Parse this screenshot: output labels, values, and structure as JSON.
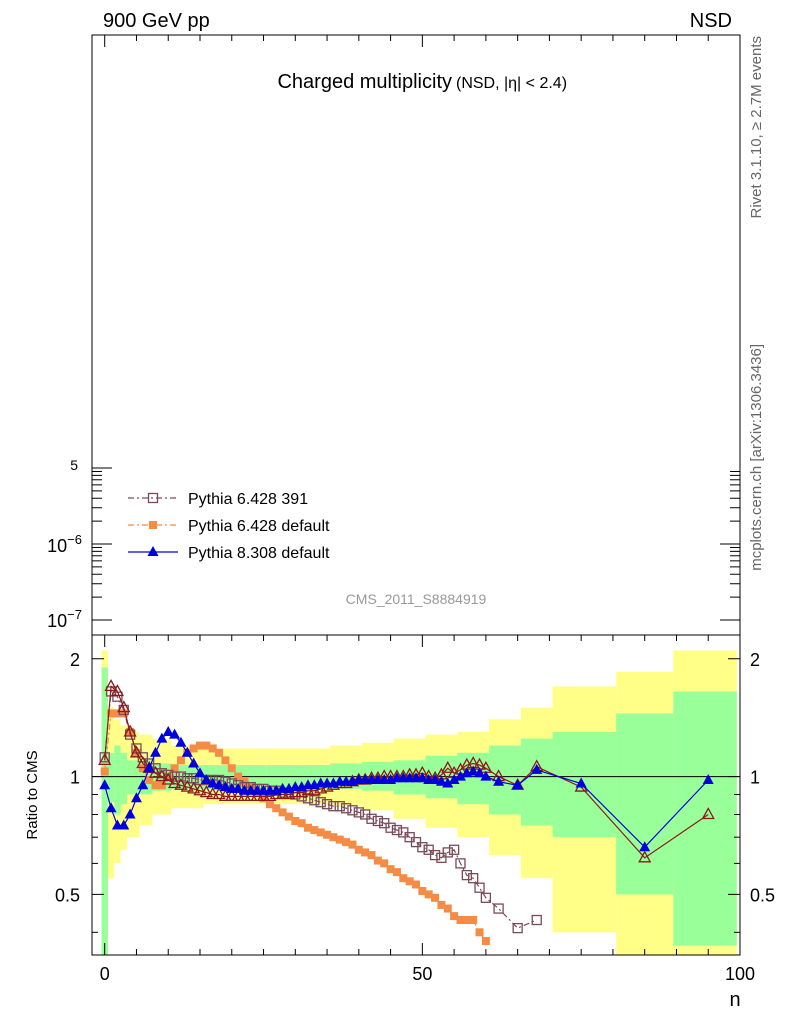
{
  "header": {
    "left": "900 GeV pp",
    "right": "NSD",
    "side_top": "Rivet 3.1.10, ≥ 2.7M events",
    "side_bottom": "mcplots.cern.ch [arXiv:1306.3436]"
  },
  "main_panel": {
    "title": "Charged multiplicity",
    "title_sub": "(NSD, |η| < 2.4)",
    "analysis_id": "CMS_2011_S8884919",
    "y_tick_labels": [
      {
        "label": "10",
        "exp": "−7",
        "value": 1e-07
      },
      {
        "label": "10",
        "exp": "−6",
        "value": 1e-06
      },
      {
        "label": "5",
        "exp": "",
        "value": 5e-06
      }
    ],
    "legend": [
      {
        "label": "Pythia 6.428 391",
        "color": "#7b4a58",
        "marker": "open-square",
        "dash": "6,3,2,3"
      },
      {
        "label": "Pythia 6.428 default",
        "color": "#f58c46",
        "marker": "filled-square",
        "dash": "6,3,2,3"
      },
      {
        "label": "Pythia 8.308 default",
        "color": "#0000dd",
        "marker": "filled-triangle",
        "dash": ""
      }
    ]
  },
  "ratio_panel": {
    "ylabel": "Ratio to CMS",
    "xlabel": "n",
    "x_tick_labels": [
      "0",
      "50",
      "100"
    ],
    "y_tick_labels": [
      "0.5",
      "1",
      "2"
    ]
  },
  "chart_data": {
    "type": "line",
    "xlabel": "n",
    "ylabel": "Ratio to CMS",
    "xlim": [
      -2,
      100
    ],
    "ylim": [
      0.35,
      2.3
    ],
    "yscale": "log",
    "uncertainty_bands": {
      "color_inner": "#99ff99",
      "color_outer": "#ffff88",
      "x_edges": [
        -0.5,
        0.5,
        1.5,
        2.5,
        3.5,
        5.5,
        7.5,
        10.5,
        15.5,
        20.5,
        25.5,
        30.5,
        35.5,
        40.5,
        45.5,
        50.5,
        55.5,
        60.5,
        65.5,
        70.5,
        80.5,
        89.5,
        99.5
      ],
      "inner_lo": [
        0.3,
        0.86,
        0.8,
        0.85,
        0.9,
        0.9,
        0.92,
        0.93,
        0.93,
        0.93,
        0.93,
        0.93,
        0.93,
        0.92,
        0.9,
        0.88,
        0.85,
        0.8,
        0.75,
        0.7,
        0.5,
        0.37
      ],
      "inner_hi": [
        1.9,
        1.15,
        1.2,
        1.15,
        1.1,
        1.1,
        1.08,
        1.07,
        1.07,
        1.07,
        1.07,
        1.07,
        1.08,
        1.09,
        1.1,
        1.13,
        1.15,
        1.2,
        1.25,
        1.3,
        1.45,
        1.65
      ],
      "outer_lo": [
        0.3,
        0.55,
        0.6,
        0.65,
        0.7,
        0.75,
        0.8,
        0.83,
        0.85,
        0.85,
        0.85,
        0.85,
        0.84,
        0.82,
        0.78,
        0.74,
        0.7,
        0.63,
        0.55,
        0.4,
        0.3,
        0.3
      ],
      "outer_hi": [
        2.1,
        1.5,
        1.4,
        1.35,
        1.3,
        1.28,
        1.25,
        1.2,
        1.18,
        1.18,
        1.18,
        1.18,
        1.2,
        1.22,
        1.25,
        1.28,
        1.3,
        1.4,
        1.5,
        1.7,
        1.85,
        2.1
      ]
    },
    "series": [
      {
        "name": "Pythia 6.428 391",
        "color": "#7b4a58",
        "marker": "open-square",
        "x": [
          0,
          1,
          2,
          3,
          4,
          5,
          6,
          7,
          8,
          9,
          10,
          11,
          12,
          13,
          14,
          15,
          16,
          17,
          18,
          19,
          20,
          21,
          22,
          23,
          24,
          25,
          26,
          27,
          28,
          29,
          30,
          31,
          32,
          33,
          34,
          35,
          36,
          37,
          38,
          39,
          40,
          41,
          42,
          43,
          44,
          45,
          46,
          47,
          48,
          49,
          50,
          51,
          52,
          53,
          54,
          55,
          56,
          57,
          58,
          59,
          60,
          62,
          65,
          68
        ],
        "y": [
          1.12,
          1.65,
          1.6,
          1.48,
          1.28,
          1.18,
          1.12,
          1.08,
          1.05,
          1.02,
          1.01,
          1.0,
          1.0,
          0.99,
          0.99,
          0.98,
          0.98,
          0.98,
          0.98,
          0.97,
          0.96,
          0.95,
          0.94,
          0.94,
          0.93,
          0.93,
          0.92,
          0.92,
          0.91,
          0.91,
          0.9,
          0.89,
          0.88,
          0.87,
          0.86,
          0.85,
          0.84,
          0.84,
          0.83,
          0.82,
          0.81,
          0.8,
          0.78,
          0.77,
          0.76,
          0.74,
          0.73,
          0.72,
          0.7,
          0.68,
          0.66,
          0.65,
          0.63,
          0.62,
          0.64,
          0.65,
          0.6,
          0.56,
          0.55,
          0.52,
          0.49,
          0.46,
          0.41,
          0.43
        ]
      },
      {
        "name": "Pythia 6.428 default",
        "color": "#f58c46",
        "marker": "filled-square",
        "x": [
          0,
          1,
          2,
          3,
          4,
          5,
          6,
          7,
          8,
          9,
          10,
          11,
          12,
          13,
          14,
          15,
          16,
          17,
          18,
          19,
          20,
          21,
          22,
          23,
          24,
          25,
          26,
          27,
          28,
          29,
          30,
          31,
          32,
          33,
          34,
          35,
          36,
          37,
          38,
          39,
          40,
          41,
          42,
          43,
          44,
          45,
          46,
          47,
          48,
          49,
          50,
          51,
          52,
          53,
          54,
          55,
          56,
          57,
          58,
          59,
          60
        ],
        "y": [
          1.03,
          1.45,
          1.45,
          1.45,
          1.3,
          1.15,
          1.05,
          0.98,
          0.95,
          0.95,
          1.0,
          1.05,
          1.1,
          1.15,
          1.18,
          1.2,
          1.2,
          1.18,
          1.15,
          1.1,
          1.05,
          1.0,
          0.97,
          0.94,
          0.91,
          0.88,
          0.85,
          0.83,
          0.81,
          0.79,
          0.77,
          0.76,
          0.74,
          0.73,
          0.72,
          0.71,
          0.7,
          0.69,
          0.68,
          0.67,
          0.65,
          0.64,
          0.63,
          0.61,
          0.6,
          0.58,
          0.57,
          0.55,
          0.54,
          0.53,
          0.51,
          0.5,
          0.49,
          0.47,
          0.46,
          0.44,
          0.43,
          0.43,
          0.43,
          0.4,
          0.38
        ]
      },
      {
        "name": "Pythia 8.308 default",
        "color": "#0000dd",
        "marker": "filled-triangle",
        "x": [
          0,
          1,
          2,
          3,
          4,
          5,
          6,
          7,
          8,
          9,
          10,
          11,
          12,
          13,
          14,
          15,
          16,
          17,
          18,
          19,
          20,
          21,
          22,
          23,
          24,
          25,
          26,
          27,
          28,
          29,
          30,
          31,
          32,
          33,
          34,
          35,
          36,
          37,
          38,
          39,
          40,
          41,
          42,
          43,
          44,
          45,
          46,
          47,
          48,
          49,
          50,
          51,
          52,
          53,
          54,
          55,
          56,
          57,
          58,
          59,
          60,
          62,
          65,
          68,
          75,
          85,
          95
        ],
        "y": [
          0.95,
          0.83,
          0.75,
          0.75,
          0.8,
          0.88,
          0.95,
          1.05,
          1.15,
          1.25,
          1.3,
          1.28,
          1.22,
          1.15,
          1.08,
          1.02,
          0.98,
          0.96,
          0.95,
          0.94,
          0.93,
          0.93,
          0.92,
          0.92,
          0.92,
          0.92,
          0.92,
          0.92,
          0.93,
          0.93,
          0.94,
          0.94,
          0.95,
          0.95,
          0.96,
          0.96,
          0.96,
          0.97,
          0.97,
          0.97,
          0.98,
          0.98,
          0.98,
          0.98,
          0.98,
          0.98,
          0.99,
          0.99,
          0.99,
          0.99,
          0.99,
          0.98,
          0.98,
          0.97,
          0.96,
          0.98,
          1.0,
          1.02,
          1.03,
          1.02,
          1.0,
          0.97,
          0.95,
          1.04,
          0.96,
          0.66,
          0.98
        ]
      },
      {
        "name": "",
        "color": "#8b1a1a",
        "marker": "open-triangle",
        "x": [
          0,
          1,
          2,
          3,
          4,
          5,
          6,
          7,
          8,
          9,
          10,
          11,
          12,
          13,
          14,
          15,
          16,
          17,
          18,
          19,
          20,
          21,
          22,
          23,
          24,
          25,
          26,
          27,
          28,
          29,
          30,
          31,
          32,
          33,
          34,
          35,
          36,
          37,
          38,
          39,
          40,
          41,
          42,
          43,
          44,
          45,
          46,
          47,
          48,
          49,
          50,
          51,
          52,
          53,
          54,
          55,
          56,
          57,
          58,
          59,
          60,
          62,
          65,
          68,
          75,
          85,
          95
        ],
        "y": [
          1.1,
          1.7,
          1.65,
          1.5,
          1.3,
          1.15,
          1.08,
          1.05,
          1.02,
          1.0,
          0.98,
          0.96,
          0.95,
          0.94,
          0.93,
          0.92,
          0.91,
          0.9,
          0.9,
          0.89,
          0.89,
          0.89,
          0.89,
          0.89,
          0.89,
          0.89,
          0.89,
          0.9,
          0.9,
          0.9,
          0.91,
          0.91,
          0.92,
          0.92,
          0.93,
          0.94,
          0.95,
          0.96,
          0.96,
          0.97,
          0.98,
          0.98,
          0.99,
          0.99,
          1.0,
          1.0,
          1.0,
          1.0,
          1.01,
          1.01,
          1.02,
          1.0,
          0.99,
          1.01,
          1.05,
          1.02,
          1.04,
          1.07,
          1.08,
          1.07,
          1.05,
          1.0,
          0.95,
          1.06,
          0.94,
          0.62,
          0.8
        ]
      }
    ]
  }
}
